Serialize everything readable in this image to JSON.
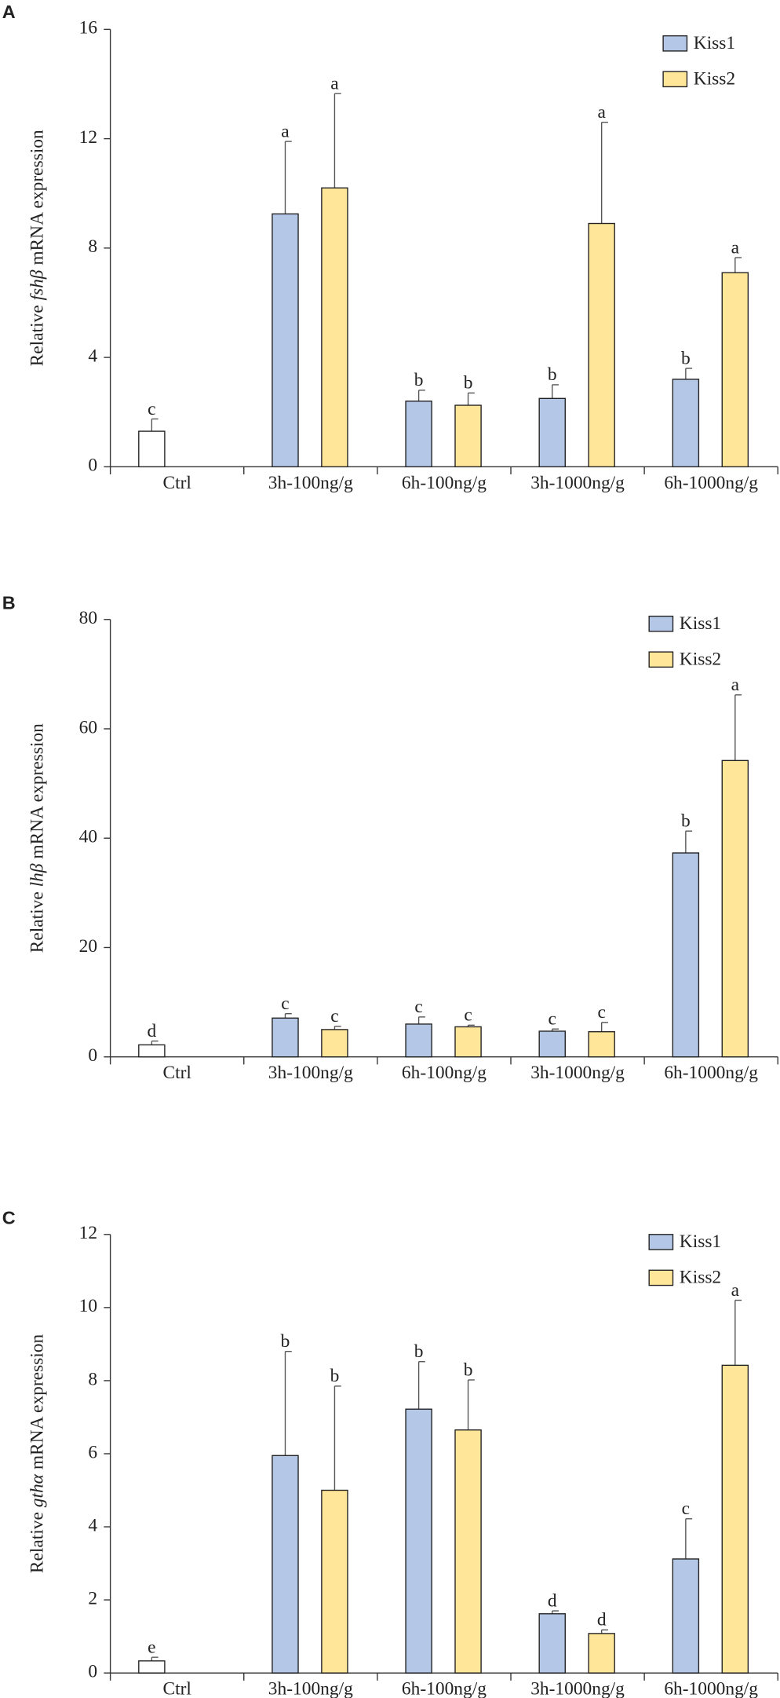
{
  "chart_data": [
    {
      "type": "bar",
      "panel": "A",
      "ylabel": {
        "prefix": "Relative ",
        "gene": "fshβ",
        "suffix": " mRNA expression"
      },
      "categories": [
        "Ctrl",
        "3h-100ng/g",
        "6h-100ng/g",
        "3h-1000ng/g",
        "6h-1000ng/g"
      ],
      "control": {
        "color": "#ffffff",
        "value": 1.3,
        "error": 0.45,
        "label": "c"
      },
      "series": [
        {
          "name": "Kiss1",
          "color": "#b4c7e7",
          "values": [
            null,
            9.25,
            2.4,
            2.5,
            3.2
          ],
          "errors": [
            null,
            2.65,
            0.4,
            0.5,
            0.4
          ],
          "labels": [
            null,
            "a",
            "b",
            "b",
            "b"
          ]
        },
        {
          "name": "Kiss2",
          "color": "#ffe699",
          "values": [
            null,
            10.2,
            2.25,
            8.9,
            7.1
          ],
          "errors": [
            null,
            3.45,
            0.45,
            3.7,
            0.55
          ],
          "labels": [
            null,
            "a",
            "b",
            "a",
            "a"
          ]
        }
      ],
      "ylim": [
        0,
        16
      ],
      "yticks": [
        0,
        4,
        8,
        12,
        16
      ]
    },
    {
      "type": "bar",
      "panel": "B",
      "ylabel": {
        "prefix": "Relative ",
        "gene": "lhβ",
        "suffix": " mRNA expression"
      },
      "categories": [
        "Ctrl",
        "3h-100ng/g",
        "6h-100ng/g",
        "3h-1000ng/g",
        "6h-1000ng/g"
      ],
      "control": {
        "color": "#ffffff",
        "value": 2.2,
        "error": 0.7,
        "label": "d"
      },
      "series": [
        {
          "name": "Kiss1",
          "color": "#b4c7e7",
          "values": [
            null,
            7.1,
            6.0,
            4.7,
            37.3
          ],
          "errors": [
            null,
            0.8,
            1.3,
            0.4,
            4.0
          ],
          "labels": [
            null,
            "c",
            "c",
            "c",
            "b"
          ]
        },
        {
          "name": "Kiss2",
          "color": "#ffe699",
          "values": [
            null,
            5.0,
            5.5,
            4.6,
            54.2
          ],
          "errors": [
            null,
            0.6,
            0.3,
            1.7,
            12.0
          ],
          "labels": [
            null,
            "c",
            "c",
            "c",
            "a"
          ]
        }
      ],
      "ylim": [
        0,
        80
      ],
      "yticks": [
        0,
        20,
        40,
        60,
        80
      ]
    },
    {
      "type": "bar",
      "panel": "C",
      "ylabel": {
        "prefix": "Relative ",
        "gene": "gthα",
        "suffix": " mRNA expression"
      },
      "categories": [
        "Ctrl",
        "3h-100ng/g",
        "6h-100ng/g",
        "3h-1000ng/g",
        "6h-1000ng/g"
      ],
      "control": {
        "color": "#ffffff",
        "value": 0.33,
        "error": 0.1,
        "label": "e"
      },
      "series": [
        {
          "name": "Kiss1",
          "color": "#b4c7e7",
          "values": [
            null,
            5.95,
            7.22,
            1.62,
            3.12
          ],
          "errors": [
            null,
            2.85,
            1.3,
            0.08,
            1.1
          ],
          "labels": [
            null,
            "b",
            "b",
            "d",
            "c"
          ]
        },
        {
          "name": "Kiss2",
          "color": "#ffe699",
          "values": [
            null,
            5.0,
            6.65,
            1.08,
            8.42
          ],
          "errors": [
            null,
            2.85,
            1.37,
            0.1,
            1.78
          ],
          "labels": [
            null,
            "b",
            "b",
            "d",
            "a"
          ]
        }
      ],
      "ylim": [
        0,
        12
      ],
      "yticks": [
        0,
        2,
        4,
        6,
        8,
        10,
        12
      ]
    }
  ]
}
